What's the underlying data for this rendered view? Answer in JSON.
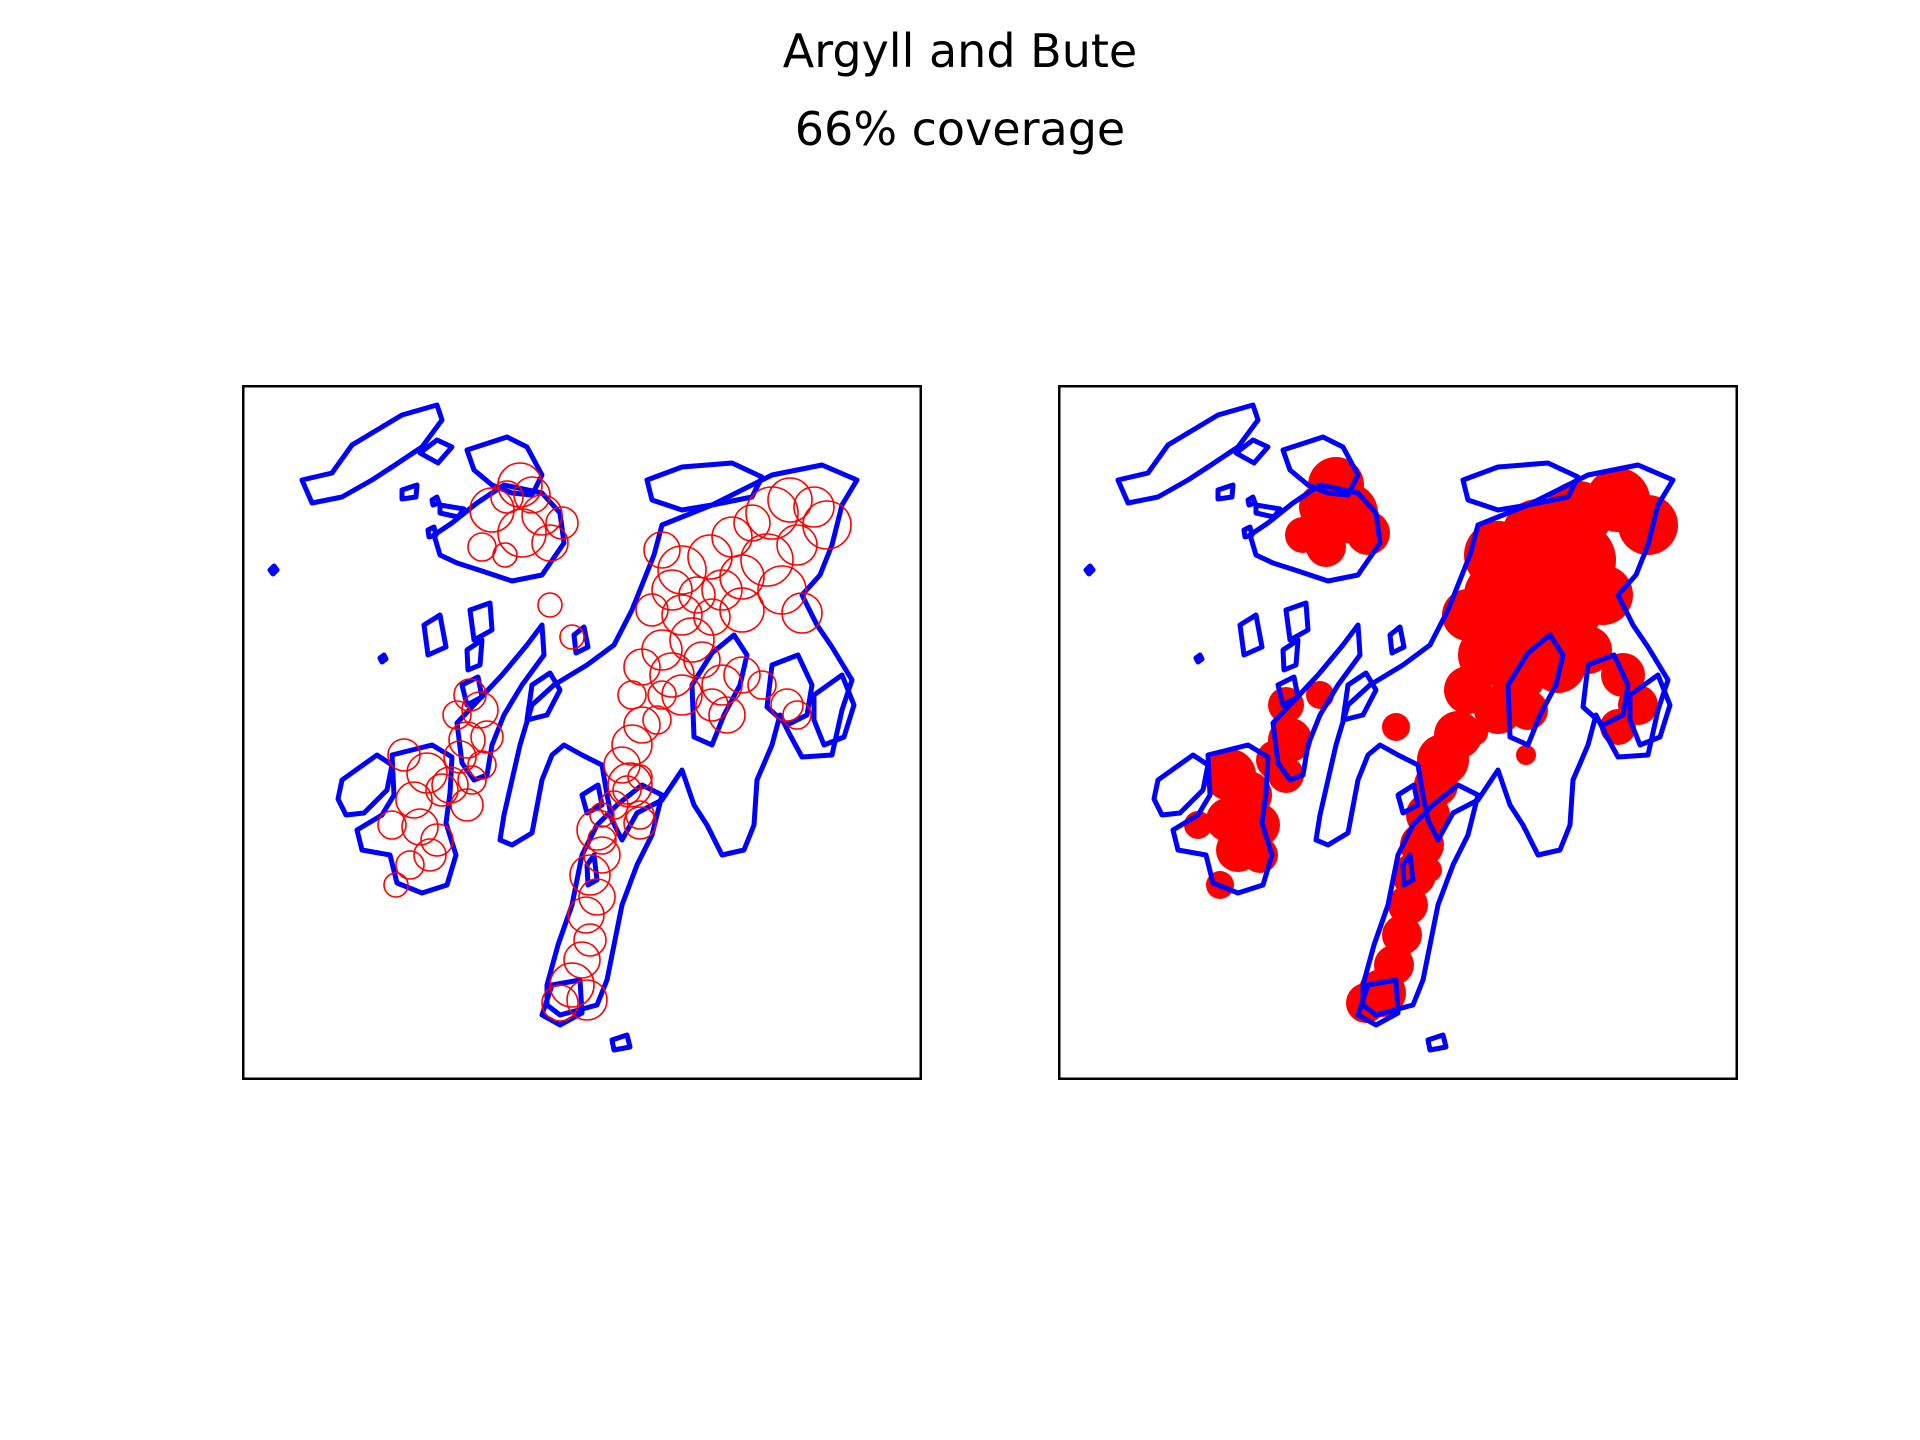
{
  "figure": {
    "title_line1": "Argyll and Bute",
    "title_line2": "66% coverage"
  },
  "colors": {
    "outline": "#0000ff",
    "coverage": "#ff0000",
    "frame": "#000000",
    "background": "#ffffff"
  },
  "panels": [
    {
      "name": "coverage-circles-outline",
      "circle_style": "outline"
    },
    {
      "name": "coverage-circles-filled",
      "circle_style": "filled"
    }
  ]
}
